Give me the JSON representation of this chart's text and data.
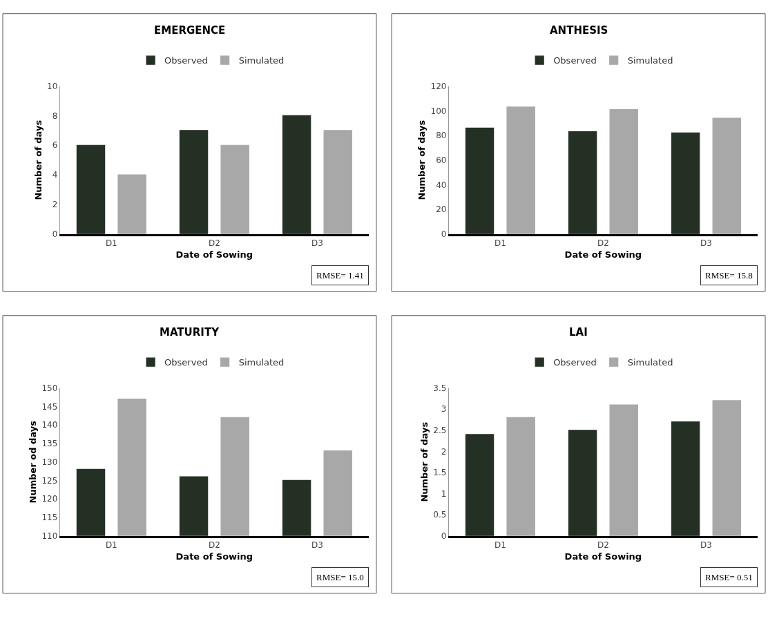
{
  "chart_data": [
    {
      "type": "bar",
      "title": "EMERGENCE",
      "xlabel": "Date of Sowing",
      "ylabel": "Number of days",
      "categories": [
        "D1",
        "D2",
        "D3"
      ],
      "series": [
        {
          "name": "Observed",
          "color": "#243024",
          "values": [
            6,
            7,
            8
          ]
        },
        {
          "name": "Simulated",
          "color": "#a8a8a8",
          "values": [
            4,
            6,
            7
          ]
        }
      ],
      "ylim": [
        0,
        10
      ],
      "yticks": [
        0,
        2,
        4,
        6,
        8,
        10
      ],
      "grid": false,
      "legend": "top",
      "annotations": [
        "RMSE= 1.41"
      ]
    },
    {
      "type": "bar",
      "title": "ANTHESIS",
      "xlabel": "Date of Sowing",
      "ylabel": "Number of days",
      "categories": [
        "D1",
        "D2",
        "D3"
      ],
      "series": [
        {
          "name": "Observed",
          "color": "#243024",
          "values": [
            86,
            83,
            82
          ]
        },
        {
          "name": "Simulated",
          "color": "#a8a8a8",
          "values": [
            103,
            101,
            94
          ]
        }
      ],
      "ylim": [
        0,
        120
      ],
      "yticks": [
        0,
        20,
        40,
        60,
        80,
        100,
        120
      ],
      "grid": false,
      "legend": "top",
      "annotations": [
        "RMSE= 15.8"
      ]
    },
    {
      "type": "bar",
      "title": "MATURITY",
      "xlabel": "Date of Sowing",
      "ylabel": "Number od days",
      "categories": [
        "D1",
        "D2",
        "D3"
      ],
      "series": [
        {
          "name": "Observed",
          "color": "#243024",
          "values": [
            128,
            126,
            125
          ]
        },
        {
          "name": "Simulated",
          "color": "#a8a8a8",
          "values": [
            147,
            142,
            133
          ]
        }
      ],
      "ylim": [
        110,
        150
      ],
      "yticks": [
        110,
        115,
        120,
        125,
        130,
        135,
        140,
        145,
        150
      ],
      "grid": false,
      "legend": "top",
      "annotations": [
        "RMSE= 15.0"
      ]
    },
    {
      "type": "bar",
      "title": "LAI",
      "xlabel": "Date of Sowing",
      "ylabel": "Number of days",
      "categories": [
        "D1",
        "D2",
        "D3"
      ],
      "series": [
        {
          "name": "Observed",
          "color": "#243024",
          "values": [
            2.4,
            2.5,
            2.7
          ]
        },
        {
          "name": "Simulated",
          "color": "#a8a8a8",
          "values": [
            2.8,
            3.1,
            3.2
          ]
        }
      ],
      "ylim": [
        0,
        3.5
      ],
      "yticks": [
        0,
        0.5,
        1,
        1.5,
        2,
        2.5,
        3,
        3.5
      ],
      "grid": false,
      "legend": "top",
      "annotations": [
        "RMSE= 0.51"
      ]
    }
  ]
}
